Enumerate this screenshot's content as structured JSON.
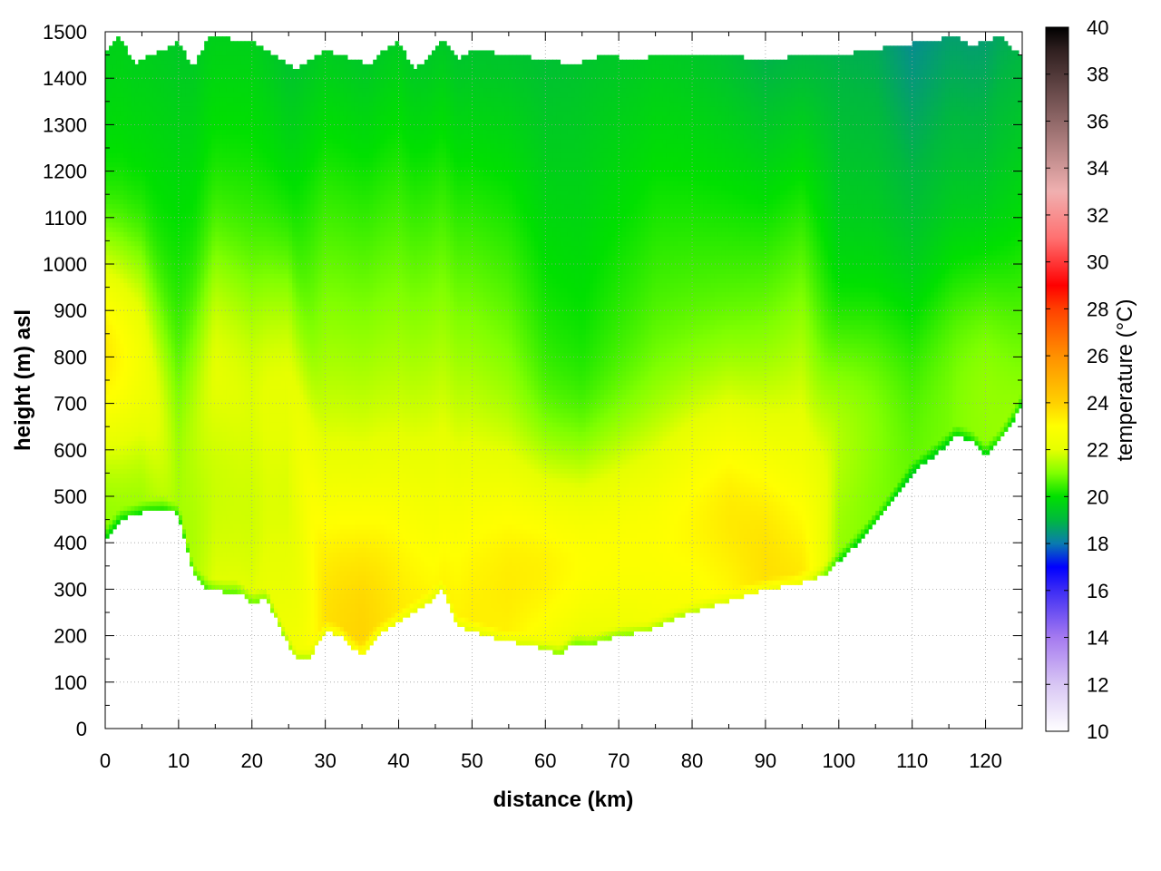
{
  "chart_data": {
    "type": "heatmap",
    "title": "",
    "xlabel": "distance (km)",
    "ylabel": "height (m) asl",
    "colorbar_label": "temperature (°C)",
    "xlim": [
      0,
      125
    ],
    "ylim": [
      0,
      1500
    ],
    "x_ticks": [
      0,
      10,
      20,
      30,
      40,
      50,
      60,
      70,
      80,
      90,
      100,
      110,
      120
    ],
    "y_ticks": [
      0,
      100,
      200,
      300,
      400,
      500,
      600,
      700,
      800,
      900,
      1000,
      1100,
      1200,
      1300,
      1400,
      1500
    ],
    "colorbar_range": [
      10,
      40
    ],
    "colorbar_ticks": [
      10,
      12,
      14,
      16,
      18,
      20,
      22,
      24,
      26,
      28,
      30,
      32,
      34,
      36,
      38,
      40
    ],
    "grid": true,
    "colormap": [
      {
        "t": 10,
        "color": "#ffffff"
      },
      {
        "t": 12,
        "color": "#d8c6f4"
      },
      {
        "t": 14,
        "color": "#a57af0"
      },
      {
        "t": 16,
        "color": "#3d2cf4"
      },
      {
        "t": 17,
        "color": "#0000ff"
      },
      {
        "t": 18,
        "color": "#0a7ab0"
      },
      {
        "t": 19,
        "color": "#00b840"
      },
      {
        "t": 20,
        "color": "#00e000"
      },
      {
        "t": 21,
        "color": "#80ff00"
      },
      {
        "t": 22,
        "color": "#e6ff00"
      },
      {
        "t": 23,
        "color": "#ffff00"
      },
      {
        "t": 24,
        "color": "#ffd000"
      },
      {
        "t": 26,
        "color": "#ff9000"
      },
      {
        "t": 28,
        "color": "#ff4000"
      },
      {
        "t": 29,
        "color": "#ff0000"
      },
      {
        "t": 31,
        "color": "#ff7070"
      },
      {
        "t": 33,
        "color": "#f0b0b0"
      },
      {
        "t": 35,
        "color": "#b08080"
      },
      {
        "t": 37,
        "color": "#705050"
      },
      {
        "t": 39,
        "color": "#302020"
      },
      {
        "t": 40,
        "color": "#000000"
      }
    ],
    "ground_height": {
      "x": [
        0,
        2,
        4,
        6,
        8,
        10,
        12,
        14,
        16,
        18,
        20,
        22,
        24,
        26,
        28,
        30,
        32,
        34,
        35,
        37,
        40,
        42,
        44,
        46,
        48,
        50,
        54,
        58,
        62,
        64,
        66,
        70,
        74,
        78,
        82,
        86,
        90,
        94,
        98,
        102,
        106,
        110,
        114,
        116,
        118,
        120,
        122,
        124,
        125
      ],
      "y": [
        410,
        450,
        460,
        470,
        475,
        460,
        330,
        300,
        295,
        295,
        270,
        280,
        210,
        150,
        155,
        210,
        200,
        170,
        160,
        200,
        230,
        250,
        270,
        300,
        220,
        210,
        190,
        180,
        160,
        185,
        180,
        200,
        210,
        240,
        260,
        280,
        300,
        310,
        330,
        390,
        460,
        550,
        600,
        630,
        620,
        590,
        620,
        670,
        700
      ]
    },
    "top_height": {
      "x": [
        0,
        2,
        4,
        6,
        8,
        10,
        12,
        14,
        20,
        24,
        26,
        28,
        30,
        34,
        36,
        38,
        40,
        42,
        44,
        46,
        48,
        50,
        56,
        60,
        64,
        68,
        72,
        76,
        80,
        84,
        90,
        96,
        100,
        104,
        108,
        112,
        116,
        118,
        120,
        122,
        124,
        125
      ],
      "y": [
        1460,
        1490,
        1430,
        1450,
        1460,
        1480,
        1420,
        1490,
        1480,
        1440,
        1420,
        1440,
        1460,
        1440,
        1430,
        1460,
        1480,
        1420,
        1440,
        1490,
        1440,
        1460,
        1450,
        1440,
        1430,
        1450,
        1440,
        1450,
        1450,
        1450,
        1440,
        1450,
        1450,
        1460,
        1470,
        1480,
        1490,
        1470,
        1480,
        1490,
        1460,
        1450
      ]
    },
    "temperature_profile": {
      "x": [
        0,
        5,
        10,
        15,
        20,
        25,
        30,
        35,
        40,
        45,
        50,
        55,
        60,
        65,
        70,
        75,
        80,
        85,
        90,
        95,
        100,
        105,
        110,
        115,
        120,
        125
      ],
      "warm_layer_center_m": [
        820,
        800,
        600,
        820,
        760,
        780,
        320,
        300,
        350,
        380,
        380,
        370,
        360,
        370,
        400,
        430,
        480,
        500,
        450,
        420,
        650,
        700,
        740,
        800,
        800,
        760
      ],
      "warm_layer_peak_c": [
        24.0,
        23.0,
        21.5,
        23.0,
        22.8,
        23.5,
        23.8,
        24.2,
        23.6,
        23.2,
        23.6,
        23.8,
        23.6,
        23.2,
        23.2,
        23.3,
        23.6,
        24.0,
        24.0,
        23.6,
        22.0,
        21.5,
        21.0,
        21.2,
        21.6,
        21.2
      ],
      "surface_c": [
        21.0,
        21.0,
        21.0,
        22.0,
        22.0,
        22.5,
        23.0,
        23.2,
        23.0,
        23.0,
        23.0,
        22.6,
        21.5,
        21.0,
        21.5,
        22.0,
        22.2,
        22.5,
        23.0,
        23.4,
        21.0,
        20.8,
        20.6,
        20.6,
        20.8,
        21.0
      ],
      "top_c": [
        19.6,
        19.6,
        19.4,
        19.6,
        19.6,
        19.3,
        19.5,
        19.4,
        19.5,
        19.4,
        19.3,
        19.3,
        19.2,
        19.3,
        19.4,
        19.5,
        19.4,
        19.2,
        18.9,
        19.0,
        18.9,
        18.8,
        18.3,
        18.6,
        18.6,
        19.0
      ]
    }
  }
}
